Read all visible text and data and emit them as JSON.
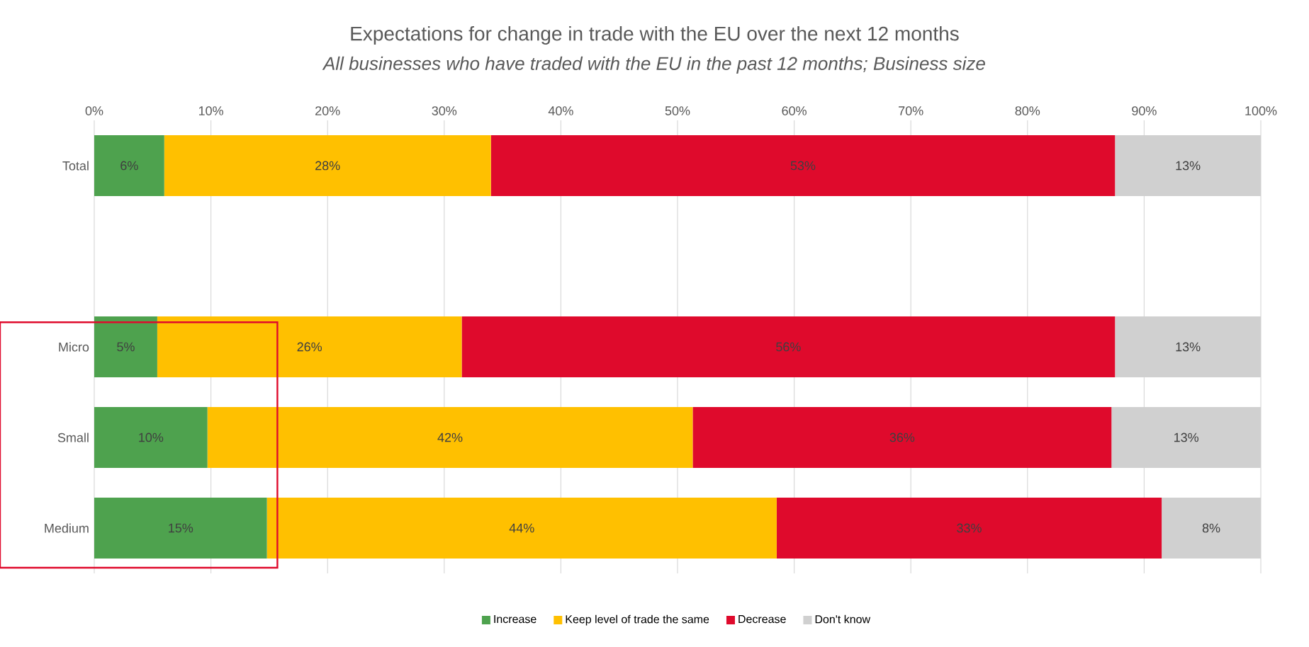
{
  "chart_data": {
    "type": "bar",
    "orientation": "horizontal",
    "stacked": true,
    "title": "Expectations for change in trade with the EU over the next 12 months",
    "subtitle": "*All businesses who have traded with the EU in the past 12 months; Business size*",
    "categories": [
      "Total",
      null,
      "Micro",
      "Small",
      "Medium"
    ],
    "series": [
      {
        "name": "Increase",
        "color": "#4ea24e",
        "values": [
          6.0,
          null,
          5.4,
          9.7,
          14.8
        ],
        "value_labels": [
          "6%",
          null,
          "5%",
          "10%",
          "15%"
        ]
      },
      {
        "name": "Keep level of trade the same",
        "color": "#ffc000",
        "values": [
          28.0,
          null,
          26.1,
          41.6,
          43.7
        ],
        "value_labels": [
          "28%",
          null,
          "26%",
          "42%",
          "44%"
        ]
      },
      {
        "name": "Decrease",
        "color": "#df0a2c",
        "values": [
          53.5,
          null,
          56.0,
          35.9,
          33.0
        ],
        "value_labels": [
          "53%",
          null,
          "56%",
          "36%",
          "33%"
        ]
      },
      {
        "name": "Don't know",
        "color": "#d0d0d0",
        "values": [
          12.5,
          null,
          12.5,
          12.8,
          8.5
        ],
        "value_labels": [
          "13%",
          null,
          "13%",
          "13%",
          "8%"
        ]
      }
    ],
    "xlim": [
      0,
      100
    ],
    "xticks": [
      {
        "value": 0,
        "label": "0%"
      },
      {
        "value": 10,
        "label": "10%"
      },
      {
        "value": 20,
        "label": "20%"
      },
      {
        "value": 30,
        "label": "30%"
      },
      {
        "value": 40,
        "label": "40%"
      },
      {
        "value": 50,
        "label": "50%"
      },
      {
        "value": 60,
        "label": "60%"
      },
      {
        "value": 70,
        "label": "70%"
      },
      {
        "value": 80,
        "label": "80%"
      },
      {
        "value": 90,
        "label": "90%"
      },
      {
        "value": 100,
        "label": "100%"
      }
    ],
    "grid": "x",
    "legend": "bottom"
  }
}
